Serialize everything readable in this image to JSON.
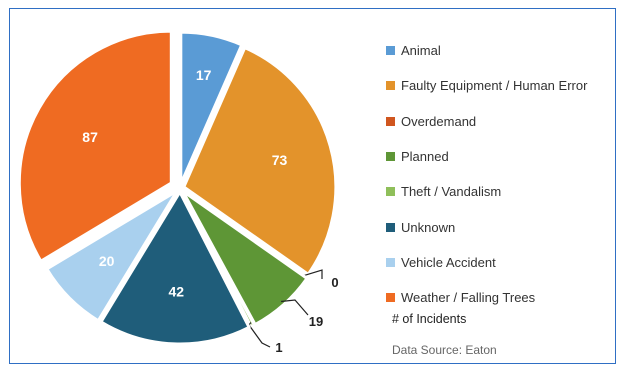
{
  "chart_data": {
    "type": "pie",
    "title": "",
    "measure_label": "# of Incidents",
    "source": "Data Source: Eaton",
    "legend_position": "right",
    "series": [
      {
        "name": "Animal",
        "value": 17,
        "color": "#5a9bd5",
        "label": "17"
      },
      {
        "name": "Faulty Equipment / Human Error",
        "value": 73,
        "color": "#e3932b",
        "label": "73"
      },
      {
        "name": "Overdemand",
        "value": 0,
        "color": "#d0561f",
        "label": "0"
      },
      {
        "name": "Planned",
        "value": 19,
        "color": "#5e9636",
        "label": "19"
      },
      {
        "name": "Theft / Vandalism",
        "value": 1,
        "color": "#8fbf5a",
        "label": "1"
      },
      {
        "name": "Unknown",
        "value": 42,
        "color": "#1f5d7a",
        "label": "42"
      },
      {
        "name": "Vehicle Accident",
        "value": 20,
        "color": "#a9d0ee",
        "label": "20"
      },
      {
        "name": "Weather / Falling Trees",
        "value": 87,
        "color": "#ef6b22",
        "label": "87"
      }
    ]
  }
}
